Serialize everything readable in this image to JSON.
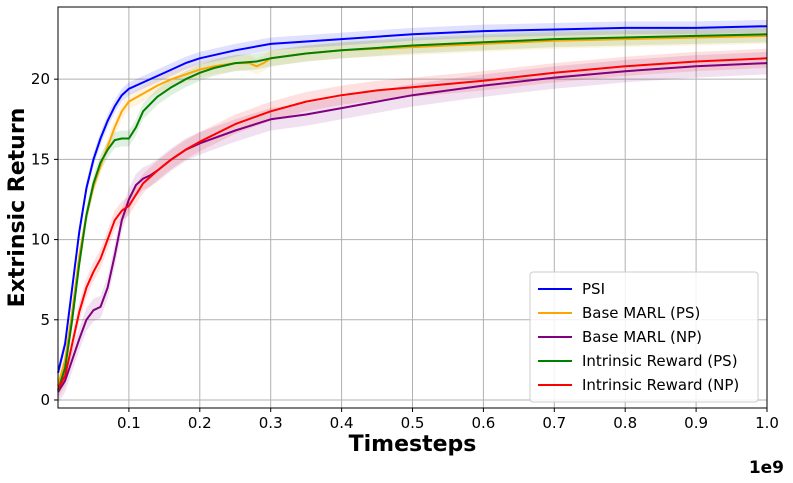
{
  "chart_data": {
    "type": "line",
    "title": "",
    "xlabel": "Timesteps",
    "ylabel": "Extrinsic Return",
    "x_offset_label": "1e9",
    "xlim": [
      0.0,
      1.0
    ],
    "ylim": [
      -0.5,
      24.5
    ],
    "xticks": [
      0.1,
      0.2,
      0.3,
      0.4,
      0.5,
      0.6,
      0.7,
      0.8,
      0.9,
      1.0
    ],
    "xtick_labels": [
      "0.1",
      "0.2",
      "0.3",
      "0.4",
      "0.5",
      "0.6",
      "0.7",
      "0.8",
      "0.9",
      "1.0"
    ],
    "yticks": [
      0,
      5,
      10,
      15,
      20
    ],
    "ytick_labels": [
      "0",
      "5",
      "10",
      "15",
      "20"
    ],
    "grid": true,
    "legend_position": "bottom-right",
    "series": [
      {
        "name": "PSI",
        "color": "#0000ff",
        "x": [
          0.0,
          0.01,
          0.02,
          0.03,
          0.04,
          0.05,
          0.06,
          0.07,
          0.08,
          0.09,
          0.1,
          0.12,
          0.14,
          0.16,
          0.18,
          0.2,
          0.25,
          0.3,
          0.4,
          0.5,
          0.6,
          0.7,
          0.8,
          0.9,
          1.0
        ],
        "y": [
          1.7,
          3.5,
          7.0,
          10.5,
          13.2,
          15.0,
          16.3,
          17.4,
          18.3,
          19.0,
          19.4,
          19.8,
          20.2,
          20.6,
          21.0,
          21.3,
          21.8,
          22.2,
          22.5,
          22.8,
          23.0,
          23.1,
          23.2,
          23.2,
          23.3
        ],
        "band": 0.4
      },
      {
        "name": "Base MARL (PS)",
        "color": "#ffa500",
        "x": [
          0.0,
          0.01,
          0.02,
          0.03,
          0.04,
          0.05,
          0.06,
          0.07,
          0.08,
          0.09,
          0.1,
          0.12,
          0.14,
          0.16,
          0.18,
          0.2,
          0.22,
          0.25,
          0.27,
          0.28,
          0.29,
          0.3,
          0.35,
          0.4,
          0.5,
          0.6,
          0.7,
          0.8,
          0.9,
          1.0
        ],
        "y": [
          0.9,
          2.5,
          5.5,
          9.0,
          11.5,
          13.3,
          14.6,
          15.8,
          17.0,
          18.0,
          18.6,
          19.1,
          19.6,
          20.0,
          20.3,
          20.6,
          20.8,
          21.0,
          21.0,
          20.8,
          21.0,
          21.3,
          21.6,
          21.8,
          22.0,
          22.2,
          22.4,
          22.5,
          22.6,
          22.7
        ],
        "band": 0.5
      },
      {
        "name": "Base MARL (NP)",
        "color": "#800080",
        "x": [
          0.0,
          0.01,
          0.02,
          0.03,
          0.04,
          0.05,
          0.06,
          0.07,
          0.08,
          0.09,
          0.1,
          0.11,
          0.12,
          0.13,
          0.14,
          0.16,
          0.18,
          0.2,
          0.25,
          0.3,
          0.35,
          0.4,
          0.45,
          0.5,
          0.6,
          0.7,
          0.8,
          0.9,
          1.0
        ],
        "y": [
          0.5,
          1.2,
          2.5,
          3.8,
          5.0,
          5.6,
          5.8,
          7.0,
          9.0,
          11.2,
          12.5,
          13.4,
          13.8,
          14.0,
          14.3,
          15.0,
          15.6,
          16.0,
          16.8,
          17.5,
          17.8,
          18.2,
          18.6,
          19.0,
          19.6,
          20.1,
          20.5,
          20.8,
          21.0
        ],
        "band": 0.7
      },
      {
        "name": "Intrinsic Reward (PS)",
        "color": "#008000",
        "x": [
          0.0,
          0.01,
          0.02,
          0.03,
          0.04,
          0.05,
          0.06,
          0.07,
          0.08,
          0.09,
          0.1,
          0.11,
          0.12,
          0.14,
          0.16,
          0.18,
          0.2,
          0.22,
          0.25,
          0.28,
          0.3,
          0.35,
          0.4,
          0.5,
          0.6,
          0.7,
          0.8,
          0.9,
          1.0
        ],
        "y": [
          0.6,
          2.0,
          5.0,
          8.5,
          11.5,
          13.5,
          14.8,
          15.6,
          16.2,
          16.3,
          16.3,
          17.0,
          18.0,
          18.9,
          19.5,
          20.0,
          20.4,
          20.7,
          21.0,
          21.1,
          21.3,
          21.6,
          21.8,
          22.1,
          22.3,
          22.5,
          22.6,
          22.7,
          22.8
        ],
        "band": 0.5
      },
      {
        "name": "Intrinsic Reward (NP)",
        "color": "#ff0000",
        "x": [
          0.0,
          0.01,
          0.02,
          0.03,
          0.04,
          0.05,
          0.06,
          0.07,
          0.08,
          0.09,
          0.1,
          0.11,
          0.12,
          0.13,
          0.14,
          0.16,
          0.18,
          0.2,
          0.25,
          0.3,
          0.35,
          0.4,
          0.45,
          0.5,
          0.6,
          0.7,
          0.8,
          0.9,
          1.0
        ],
        "y": [
          0.7,
          1.5,
          3.5,
          5.5,
          7.0,
          8.0,
          8.8,
          10.0,
          11.2,
          11.8,
          12.1,
          12.8,
          13.5,
          13.9,
          14.3,
          15.0,
          15.6,
          16.1,
          17.2,
          18.0,
          18.6,
          19.0,
          19.3,
          19.5,
          19.9,
          20.4,
          20.8,
          21.1,
          21.3
        ],
        "band": 0.6
      }
    ]
  }
}
